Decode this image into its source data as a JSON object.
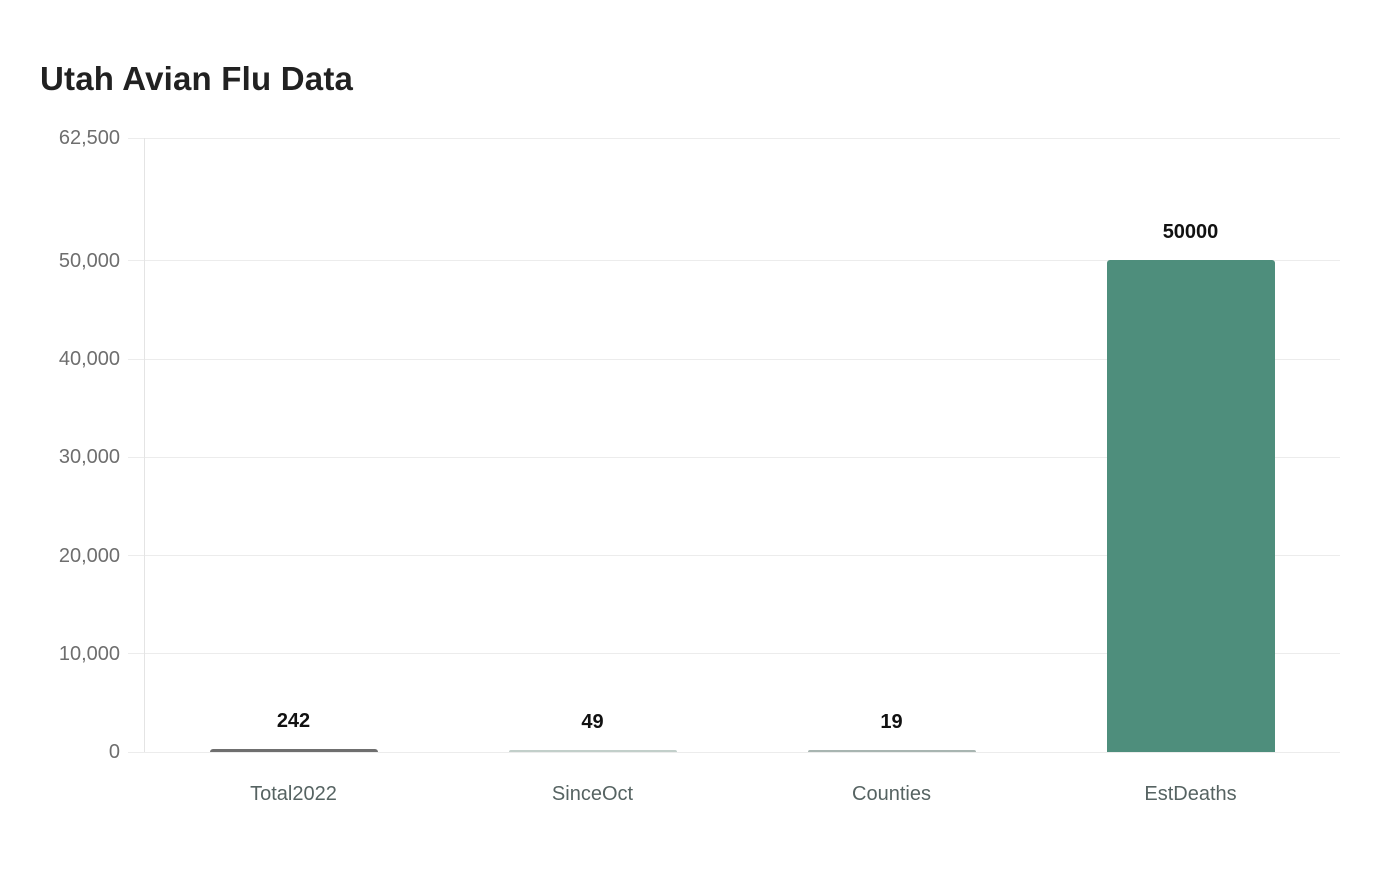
{
  "title": "Utah Avian Flu Data",
  "colors": {
    "background": "#ffffff",
    "title_text": "#212121",
    "gridline": "#ececec",
    "axis_line": "#e4e4e4",
    "ytick_text": "#6e6e6e",
    "category_text": "#566362",
    "value_label_text": "#111111",
    "bar_primary": "#4e8e7c"
  },
  "chart_data": {
    "type": "bar",
    "title": "Utah Avian Flu Data",
    "categories": [
      "Total2022",
      "SinceOct",
      "Counties",
      "EstDeaths"
    ],
    "values": [
      242,
      49,
      19,
      50000
    ],
    "value_labels": [
      "242",
      "49",
      "19",
      "50000"
    ],
    "bar_colors": [
      "#6f6f6f",
      "#c2cfca",
      "#a8b5b1",
      "#4e8e7c"
    ],
    "xlabel": "",
    "ylabel": "",
    "ylim": [
      0,
      62500
    ],
    "yticks": [
      0,
      10000,
      20000,
      30000,
      40000,
      50000,
      62500
    ],
    "ytick_labels": [
      "0",
      "10,000",
      "20,000",
      "30,000",
      "40,000",
      "50,000",
      "62,500"
    ],
    "grid": "horizontal",
    "legend": "none"
  }
}
